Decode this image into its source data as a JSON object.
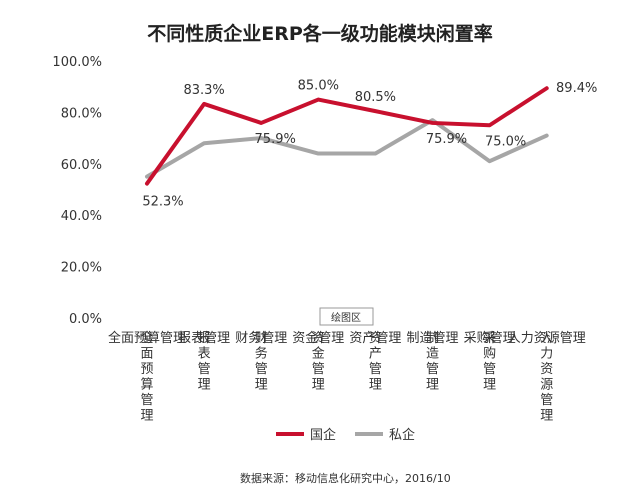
{
  "chart_data": {
    "type": "line",
    "title": "不同性质企业ERP各一级功能模块闲置率",
    "categories": [
      "全面预算管理",
      "报表管理",
      "财务管理",
      "资金管理",
      "资产管理",
      "制造管理",
      "采购管理",
      "人力资源管理"
    ],
    "series": [
      {
        "name": "国企",
        "color": "#c8102e",
        "values": [
          52.3,
          83.3,
          75.9,
          85.0,
          80.5,
          75.9,
          75.0,
          89.4
        ],
        "labels": [
          "52.3%",
          "83.3%",
          "75.9%",
          "85.0%",
          "80.5%",
          "75.9%",
          "75.0%",
          "89.4%"
        ]
      },
      {
        "name": "私企",
        "color": "#a6a6a6",
        "values": [
          55,
          68,
          70,
          64,
          64,
          77,
          61,
          71
        ]
      }
    ],
    "yticks": [
      "100.0%",
      "80.0%",
      "60.0%",
      "40.0%",
      "20.0%",
      "0.0%"
    ],
    "ylim": [
      0,
      100
    ],
    "legend_position": "bottom",
    "tooltip": "绘图区",
    "source": "数据来源：移动信息化研究中心，2016/10"
  }
}
